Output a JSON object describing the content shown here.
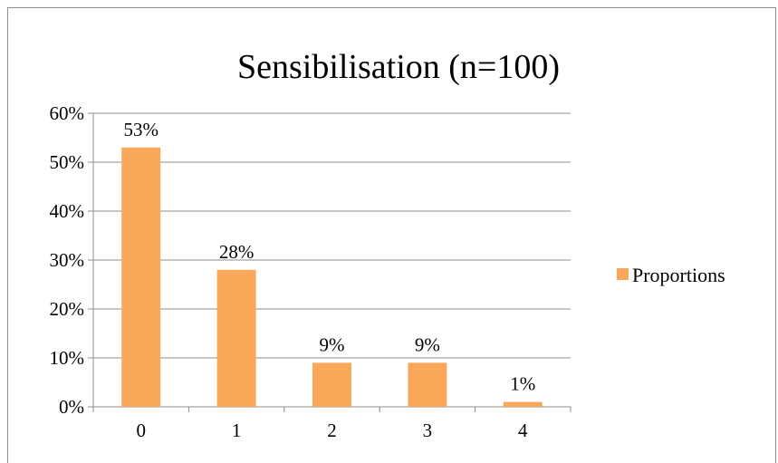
{
  "chart_data": {
    "type": "bar",
    "title": "Sensibilisation (n=100)",
    "categories": [
      "0",
      "1",
      "2",
      "3",
      "4"
    ],
    "series": [
      {
        "name": "Proportions",
        "values": [
          53,
          28,
          9,
          9,
          1
        ],
        "color": "#f9a85a"
      }
    ],
    "data_labels": [
      "53%",
      "28%",
      "9%",
      "9%",
      "1%"
    ],
    "ylim": [
      0,
      60
    ],
    "yticks": [
      "0%",
      "10%",
      "20%",
      "30%",
      "40%",
      "50%",
      "60%"
    ],
    "grid": true,
    "legend": "right"
  }
}
